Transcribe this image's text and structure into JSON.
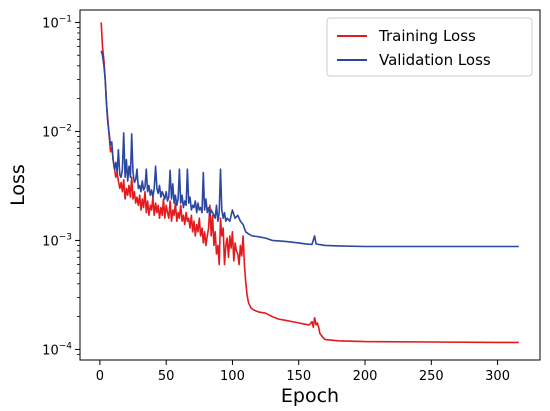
{
  "chart_data": {
    "type": "line",
    "xlabel": "Epoch",
    "ylabel": "Loss",
    "xscale": "linear",
    "yscale": "log",
    "xlim": [
      -15,
      332
    ],
    "ylim": [
      8e-05,
      0.13
    ],
    "x_ticks": [
      {
        "value": 0,
        "label": "0"
      },
      {
        "value": 50,
        "label": "50"
      },
      {
        "value": 100,
        "label": "100"
      },
      {
        "value": 150,
        "label": "150"
      },
      {
        "value": 200,
        "label": "200"
      },
      {
        "value": 250,
        "label": "250"
      },
      {
        "value": 300,
        "label": "300"
      }
    ],
    "y_ticks": [
      {
        "value": 0.0001,
        "base": "10",
        "exp": "−4"
      },
      {
        "value": 0.001,
        "base": "10",
        "exp": "−3"
      },
      {
        "value": 0.01,
        "base": "10",
        "exp": "−2"
      },
      {
        "value": 0.1,
        "base": "10",
        "exp": "−1"
      }
    ],
    "grid": false,
    "legend_position": "top-right",
    "series": [
      {
        "name": "Training Loss",
        "color": "#e41a1c",
        "points": [
          [
            1,
            0.1
          ],
          [
            2,
            0.06
          ],
          [
            3,
            0.045
          ],
          [
            4,
            0.03
          ],
          [
            5,
            0.018
          ],
          [
            6,
            0.013
          ],
          [
            7,
            0.009
          ],
          [
            8,
            0.0065
          ],
          [
            9,
            0.0072
          ],
          [
            10,
            0.0055
          ],
          [
            11,
            0.0045
          ],
          [
            12,
            0.0038
          ],
          [
            13,
            0.0042
          ],
          [
            14,
            0.0035
          ],
          [
            15,
            0.003
          ],
          [
            16,
            0.0034
          ],
          [
            17,
            0.0028
          ],
          [
            18,
            0.0036
          ],
          [
            19,
            0.0024
          ],
          [
            20,
            0.003
          ],
          [
            21,
            0.0026
          ],
          [
            22,
            0.0032
          ],
          [
            23,
            0.0025
          ],
          [
            24,
            0.0038
          ],
          [
            25,
            0.0024
          ],
          [
            26,
            0.0028
          ],
          [
            27,
            0.0022
          ],
          [
            28,
            0.0025
          ],
          [
            29,
            0.0021
          ],
          [
            30,
            0.0026
          ],
          [
            31,
            0.0019
          ],
          [
            32,
            0.0024
          ],
          [
            33,
            0.002
          ],
          [
            34,
            0.0028
          ],
          [
            35,
            0.0018
          ],
          [
            36,
            0.0023
          ],
          [
            37,
            0.0017
          ],
          [
            38,
            0.0021
          ],
          [
            39,
            0.0019
          ],
          [
            40,
            0.0025
          ],
          [
            41,
            0.0017
          ],
          [
            42,
            0.0022
          ],
          [
            43,
            0.0018
          ],
          [
            44,
            0.0021
          ],
          [
            45,
            0.0016
          ],
          [
            46,
            0.002
          ],
          [
            47,
            0.0017
          ],
          [
            48,
            0.0024
          ],
          [
            49,
            0.0016
          ],
          [
            50,
            0.0021
          ],
          [
            51,
            0.0018
          ],
          [
            52,
            0.0016
          ],
          [
            53,
            0.0023
          ],
          [
            54,
            0.0015
          ],
          [
            55,
            0.0019
          ],
          [
            56,
            0.0017
          ],
          [
            57,
            0.0022
          ],
          [
            58,
            0.0015
          ],
          [
            59,
            0.0018
          ],
          [
            60,
            0.0016
          ],
          [
            61,
            0.0021
          ],
          [
            62,
            0.0015
          ],
          [
            63,
            0.0017
          ],
          [
            64,
            0.0014
          ],
          [
            65,
            0.0018
          ],
          [
            66,
            0.0015
          ],
          [
            67,
            0.0016
          ],
          [
            68,
            0.0013
          ],
          [
            69,
            0.0017
          ],
          [
            70,
            0.0012
          ],
          [
            71,
            0.0015
          ],
          [
            72,
            0.0011
          ],
          [
            73,
            0.0014
          ],
          [
            74,
            0.0012
          ],
          [
            75,
            0.0016
          ],
          [
            76,
            0.0011
          ],
          [
            77,
            0.0013
          ],
          [
            78,
            0.00095
          ],
          [
            79,
            0.0012
          ],
          [
            80,
            0.0009
          ],
          [
            81,
            0.0011
          ],
          [
            82,
            0.0013
          ],
          [
            83,
            0.0021
          ],
          [
            84,
            0.0011
          ],
          [
            85,
            0.0017
          ],
          [
            86,
            0.0009
          ],
          [
            87,
            0.0012
          ],
          [
            88,
            0.00075
          ],
          [
            89,
            0.0009
          ],
          [
            90,
            0.0006
          ],
          [
            91,
            0.0016
          ],
          [
            92,
            0.0011
          ],
          [
            93,
            0.0013
          ],
          [
            94,
            0.0006
          ],
          [
            95,
            0.0009
          ],
          [
            96,
            0.00105
          ],
          [
            97,
            0.0007
          ],
          [
            98,
            0.0011
          ],
          [
            99,
            0.00085
          ],
          [
            100,
            0.0012
          ],
          [
            101,
            0.00065
          ],
          [
            102,
            0.00095
          ],
          [
            103,
            0.0008
          ],
          [
            104,
            0.00075
          ],
          [
            105,
            0.0006
          ],
          [
            106,
            0.0009
          ],
          [
            107,
            0.00072
          ],
          [
            108,
            0.0011
          ],
          [
            109,
            0.0006
          ],
          [
            110,
            0.00042
          ],
          [
            111,
            0.00032
          ],
          [
            112,
            0.00027
          ],
          [
            114,
            0.00024
          ],
          [
            116,
            0.00023
          ],
          [
            118,
            0.000225
          ],
          [
            120,
            0.00022
          ],
          [
            125,
            0.000215
          ],
          [
            130,
            0.0002
          ],
          [
            135,
            0.00019
          ],
          [
            140,
            0.000185
          ],
          [
            145,
            0.00018
          ],
          [
            150,
            0.000175
          ],
          [
            155,
            0.00017
          ],
          [
            158,
            0.000168
          ],
          [
            160,
            0.00018
          ],
          [
            161,
            0.00016
          ],
          [
            162,
            0.000195
          ],
          [
            163,
            0.000168
          ],
          [
            164,
            0.000175
          ],
          [
            165,
            0.00016
          ],
          [
            166,
            0.00014
          ],
          [
            168,
            0.00013
          ],
          [
            170,
            0.000123
          ],
          [
            180,
            0.00012
          ],
          [
            200,
            0.000118
          ],
          [
            250,
            0.000117
          ],
          [
            300,
            0.000116
          ],
          [
            316,
            0.000116
          ]
        ]
      },
      {
        "name": "Validation Loss",
        "color": "#2b47a0",
        "points": [
          [
            1,
            0.055
          ],
          [
            2,
            0.05
          ],
          [
            3,
            0.04
          ],
          [
            4,
            0.03
          ],
          [
            5,
            0.018
          ],
          [
            6,
            0.012
          ],
          [
            7,
            0.0095
          ],
          [
            8,
            0.0075
          ],
          [
            9,
            0.008
          ],
          [
            10,
            0.0055
          ],
          [
            11,
            0.0045
          ],
          [
            12,
            0.0052
          ],
          [
            13,
            0.0042
          ],
          [
            14,
            0.0068
          ],
          [
            15,
            0.004
          ],
          [
            16,
            0.0038
          ],
          [
            17,
            0.0045
          ],
          [
            18,
            0.0097
          ],
          [
            19,
            0.0038
          ],
          [
            20,
            0.0055
          ],
          [
            21,
            0.0035
          ],
          [
            22,
            0.0048
          ],
          [
            23,
            0.0038
          ],
          [
            24,
            0.0095
          ],
          [
            25,
            0.0042
          ],
          [
            26,
            0.0034
          ],
          [
            27,
            0.0036
          ],
          [
            28,
            0.0045
          ],
          [
            29,
            0.003
          ],
          [
            30,
            0.0032
          ],
          [
            31,
            0.0028
          ],
          [
            32,
            0.0035
          ],
          [
            33,
            0.0029
          ],
          [
            34,
            0.0031
          ],
          [
            35,
            0.0045
          ],
          [
            36,
            0.0028
          ],
          [
            37,
            0.0032
          ],
          [
            38,
            0.0026
          ],
          [
            39,
            0.0029
          ],
          [
            40,
            0.0025
          ],
          [
            41,
            0.003
          ],
          [
            42,
            0.0048
          ],
          [
            43,
            0.003
          ],
          [
            44,
            0.0027
          ],
          [
            45,
            0.0032
          ],
          [
            46,
            0.0025
          ],
          [
            47,
            0.0028
          ],
          [
            48,
            0.0026
          ],
          [
            49,
            0.0024
          ],
          [
            50,
            0.0028
          ],
          [
            51,
            0.0023
          ],
          [
            52,
            0.0025
          ],
          [
            53,
            0.0044
          ],
          [
            54,
            0.0024
          ],
          [
            55,
            0.0033
          ],
          [
            56,
            0.0022
          ],
          [
            57,
            0.0026
          ],
          [
            58,
            0.0021
          ],
          [
            59,
            0.0024
          ],
          [
            60,
            0.0045
          ],
          [
            61,
            0.0022
          ],
          [
            62,
            0.0026
          ],
          [
            63,
            0.002
          ],
          [
            64,
            0.0023
          ],
          [
            65,
            0.0021
          ],
          [
            66,
            0.0045
          ],
          [
            67,
            0.0022
          ],
          [
            68,
            0.0025
          ],
          [
            69,
            0.0019
          ],
          [
            70,
            0.0021
          ],
          [
            71,
            0.002
          ],
          [
            72,
            0.0023
          ],
          [
            73,
            0.0018
          ],
          [
            74,
            0.0022
          ],
          [
            75,
            0.0019
          ],
          [
            76,
            0.002
          ],
          [
            77,
            0.0018
          ],
          [
            78,
            0.0042
          ],
          [
            79,
            0.0019
          ],
          [
            80,
            0.0024
          ],
          [
            81,
            0.0018
          ],
          [
            82,
            0.002
          ],
          [
            83,
            0.0017
          ],
          [
            84,
            0.0019
          ],
          [
            85,
            0.0018
          ],
          [
            86,
            0.0017
          ],
          [
            87,
            0.0016
          ],
          [
            88,
            0.0021
          ],
          [
            89,
            0.0015
          ],
          [
            90,
            0.0018
          ],
          [
            91,
            0.0045
          ],
          [
            92,
            0.0019
          ],
          [
            93,
            0.0016
          ],
          [
            94,
            0.0018
          ],
          [
            95,
            0.0015
          ],
          [
            96,
            0.0016
          ],
          [
            98,
            0.0015
          ],
          [
            100,
            0.0019
          ],
          [
            102,
            0.0016
          ],
          [
            104,
            0.0017
          ],
          [
            106,
            0.0015
          ],
          [
            108,
            0.0014
          ],
          [
            110,
            0.0012
          ],
          [
            112,
            0.00115
          ],
          [
            115,
            0.0011
          ],
          [
            120,
            0.00108
          ],
          [
            125,
            0.00105
          ],
          [
            130,
            0.001
          ],
          [
            140,
            0.00098
          ],
          [
            150,
            0.00095
          ],
          [
            155,
            0.00093
          ],
          [
            160,
            0.00092
          ],
          [
            162,
            0.0011
          ],
          [
            163,
            0.00093
          ],
          [
            165,
            0.00092
          ],
          [
            170,
            0.0009
          ],
          [
            180,
            0.00089
          ],
          [
            200,
            0.00088
          ],
          [
            250,
            0.00088
          ],
          [
            300,
            0.00088
          ],
          [
            316,
            0.00088
          ]
        ]
      }
    ]
  }
}
